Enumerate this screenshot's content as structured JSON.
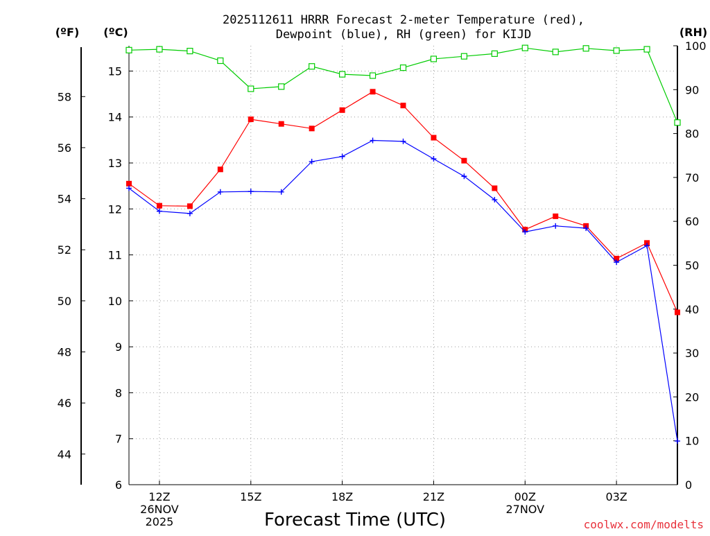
{
  "chart_data": {
    "type": "line",
    "title_lines": [
      "2025112611 HRRR Forecast 2-meter Temperature (red),",
      "Dewpoint (blue), RH (green) for KIJD"
    ],
    "xlabel": "Forecast Time (UTC)",
    "unit_labels": {
      "fahrenheit": "(ºF)",
      "celsius": "(ºC)",
      "rh": "(RH)"
    },
    "credit": "coolwx.com/modelts",
    "x_start_hour": 11,
    "x_end_hour": 29,
    "x_ticks": [
      {
        "hour": 12,
        "lines": [
          "12Z",
          "26NOV",
          "2025"
        ]
      },
      {
        "hour": 15,
        "lines": [
          "15Z"
        ]
      },
      {
        "hour": 18,
        "lines": [
          "18Z"
        ]
      },
      {
        "hour": 21,
        "lines": [
          "21Z"
        ]
      },
      {
        "hour": 24,
        "lines": [
          "00Z",
          "27NOV"
        ]
      },
      {
        "hour": 27,
        "lines": [
          "03Z"
        ]
      }
    ],
    "celsius_axis": {
      "min": 6,
      "max": 15.55,
      "ticks": [
        6,
        7,
        8,
        9,
        10,
        11,
        12,
        13,
        14,
        15
      ]
    },
    "fahrenheit_ticks": [
      44,
      46,
      48,
      50,
      52,
      54,
      56,
      58
    ],
    "rh_axis": {
      "min": 0,
      "max": 100,
      "ticks": [
        0,
        10,
        20,
        30,
        40,
        50,
        60,
        70,
        80,
        90,
        100
      ]
    },
    "hours": [
      11,
      12,
      13,
      14,
      15,
      16,
      17,
      18,
      19,
      20,
      21,
      22,
      23,
      24,
      25,
      26,
      27,
      28,
      29
    ],
    "series": [
      {
        "name": "Temperature",
        "axis": "celsius",
        "color": "#ff0000",
        "marker": "filled-square",
        "values": [
          12.55,
          12.07,
          12.06,
          12.86,
          13.95,
          13.85,
          13.75,
          14.15,
          14.55,
          14.25,
          13.55,
          13.05,
          12.45,
          11.55,
          11.84,
          11.63,
          10.92,
          11.26,
          9.75
        ]
      },
      {
        "name": "Dewpoint",
        "axis": "celsius",
        "color": "#0000ff",
        "marker": "plus",
        "values": [
          12.45,
          11.95,
          11.9,
          12.37,
          12.38,
          12.37,
          13.03,
          13.14,
          13.49,
          13.47,
          13.09,
          12.71,
          12.2,
          11.5,
          11.63,
          11.58,
          10.84,
          11.2,
          6.95
        ]
      },
      {
        "name": "RH",
        "axis": "rh",
        "color": "#00cc00",
        "marker": "open-square",
        "values": [
          99,
          99.2,
          98.8,
          96.6,
          90.2,
          90.7,
          95.3,
          93.5,
          93.2,
          95,
          97,
          97.6,
          98.2,
          99.5,
          98.6,
          99.4,
          98.9,
          99.2,
          82.5
        ]
      }
    ]
  }
}
